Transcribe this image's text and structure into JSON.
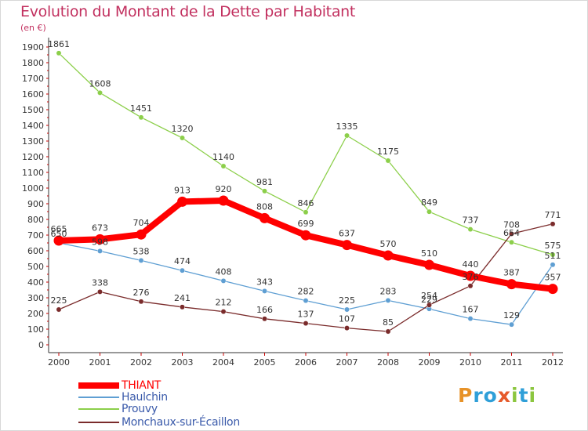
{
  "title": "Evolution du Montant de la Dette par Habitant",
  "subtitle": "(en €)",
  "logo": {
    "letters": [
      "P",
      "r",
      "o",
      "x",
      "i",
      "t",
      "i"
    ],
    "colors": [
      "#e79228",
      "#2f9fd8",
      "#2f9fd8",
      "#e65a2b",
      "#8cc63f",
      "#2f9fd8",
      "#8cc63f"
    ]
  },
  "chart_data": {
    "type": "line",
    "title": "Evolution du Montant de la Dette par Habitant",
    "subtitle": "(en €)",
    "xlabel": "",
    "ylabel": "",
    "x": [
      "2000",
      "2001",
      "2002",
      "2003",
      "2004",
      "2005",
      "2006",
      "2007",
      "2008",
      "2009",
      "2010",
      "2011",
      "2012"
    ],
    "ylim": [
      0,
      1900
    ],
    "yticks": [
      0,
      100,
      200,
      300,
      400,
      500,
      600,
      700,
      800,
      900,
      1000,
      1100,
      1200,
      1300,
      1400,
      1500,
      1600,
      1700,
      1800,
      1900
    ],
    "grid": false,
    "legend_position": "bottom-left",
    "series": [
      {
        "name": "THIANT",
        "color": "#ff0000",
        "values": [
          665,
          673,
          704,
          913,
          920,
          808,
          699,
          637,
          570,
          510,
          440,
          387,
          357
        ]
      },
      {
        "name": "Haulchin",
        "color": "#5f9fd3",
        "values": [
          650,
          598,
          538,
          474,
          408,
          343,
          282,
          225,
          283,
          229,
          167,
          129,
          511
        ]
      },
      {
        "name": "Prouvy",
        "color": "#8ccf4a",
        "values": [
          1861,
          1608,
          1451,
          1320,
          1140,
          981,
          846,
          1335,
          1175,
          849,
          737,
          654,
          575
        ]
      },
      {
        "name": "Monchaux-sur-Écaillon",
        "color": "#7a2b2b",
        "values": [
          225,
          338,
          276,
          241,
          212,
          166,
          137,
          107,
          85,
          254,
          376,
          708,
          771
        ]
      }
    ]
  }
}
